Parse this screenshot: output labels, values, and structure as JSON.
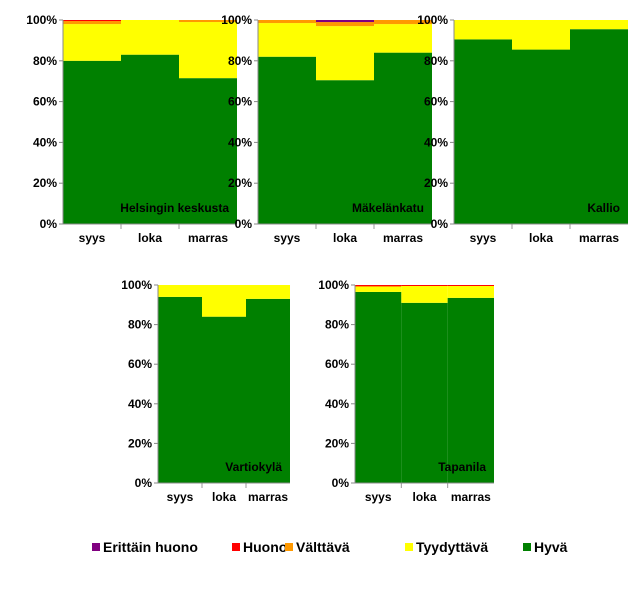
{
  "colors": {
    "Erittäin huono": "#800080",
    "Huono": "#ff0000",
    "Välttävä": "#ff9900",
    "Tyydyttävä": "#ffff00",
    "Hyvä": "#008000"
  },
  "chart_data": [
    {
      "type": "bar",
      "stacked": "percent",
      "title": "Helsingin keskusta",
      "categories": [
        "syys",
        "loka",
        "marras"
      ],
      "ylim": [
        0,
        100
      ],
      "yticks": [
        "0%",
        "20%",
        "40%",
        "60%",
        "80%",
        "100%"
      ],
      "series": [
        {
          "name": "Hyvä",
          "values": [
            80,
            83,
            71.5
          ]
        },
        {
          "name": "Tyydyttävä",
          "values": [
            18,
            17,
            27.5
          ]
        },
        {
          "name": "Välttävä",
          "values": [
            1.5,
            0,
            1
          ]
        },
        {
          "name": "Huono",
          "values": [
            0.5,
            0,
            0
          ]
        },
        {
          "name": "Erittäin huono",
          "values": [
            0,
            0,
            0
          ]
        }
      ]
    },
    {
      "type": "bar",
      "stacked": "percent",
      "title": "Mäkelänkatu",
      "categories": [
        "syys",
        "loka",
        "marras"
      ],
      "ylim": [
        0,
        100
      ],
      "yticks": [
        "0%",
        "20%",
        "40%",
        "60%",
        "80%",
        "100%"
      ],
      "series": [
        {
          "name": "Hyvä",
          "values": [
            82,
            70.5,
            84
          ]
        },
        {
          "name": "Tyydyttävä",
          "values": [
            16.5,
            26.5,
            14
          ]
        },
        {
          "name": "Välttävä",
          "values": [
            1.5,
            2,
            2
          ]
        },
        {
          "name": "Huono",
          "values": [
            0,
            0,
            0
          ]
        },
        {
          "name": "Erittäin huono",
          "values": [
            0,
            1,
            0
          ]
        }
      ]
    },
    {
      "type": "bar",
      "stacked": "percent",
      "title": "Kallio",
      "categories": [
        "syys",
        "loka",
        "marras"
      ],
      "ylim": [
        0,
        100
      ],
      "yticks": [
        "0%",
        "20%",
        "40%",
        "60%",
        "80%",
        "100%"
      ],
      "series": [
        {
          "name": "Hyvä",
          "values": [
            90.5,
            85.5,
            95.5
          ]
        },
        {
          "name": "Tyydyttävä",
          "values": [
            9.5,
            14.5,
            4.5
          ]
        },
        {
          "name": "Välttävä",
          "values": [
            0,
            0,
            0
          ]
        },
        {
          "name": "Huono",
          "values": [
            0,
            0,
            0
          ]
        },
        {
          "name": "Erittäin huono",
          "values": [
            0,
            0,
            0
          ]
        }
      ]
    },
    {
      "type": "bar",
      "stacked": "percent",
      "title": "Vartiokylä",
      "categories": [
        "syys",
        "loka",
        "marras"
      ],
      "ylim": [
        0,
        100
      ],
      "yticks": [
        "0%",
        "20%",
        "40%",
        "60%",
        "80%",
        "100%"
      ],
      "series": [
        {
          "name": "Hyvä",
          "values": [
            94,
            84,
            93
          ]
        },
        {
          "name": "Tyydyttävä",
          "values": [
            6,
            16,
            7
          ]
        },
        {
          "name": "Välttävä",
          "values": [
            0,
            0,
            0
          ]
        },
        {
          "name": "Huono",
          "values": [
            0,
            0,
            0
          ]
        },
        {
          "name": "Erittäin huono",
          "values": [
            0,
            0,
            0
          ]
        }
      ]
    },
    {
      "type": "bar",
      "stacked": "percent",
      "title": "Tapanila",
      "categories": [
        "syys",
        "loka",
        "marras"
      ],
      "ylim": [
        0,
        100
      ],
      "yticks": [
        "0%",
        "20%",
        "40%",
        "60%",
        "80%",
        "100%"
      ],
      "series": [
        {
          "name": "Hyvä",
          "values": [
            96.5,
            91,
            93.5
          ]
        },
        {
          "name": "Tyydyttävä",
          "values": [
            2.5,
            8.5,
            6
          ]
        },
        {
          "name": "Välttävä",
          "values": [
            0.5,
            0,
            0
          ]
        },
        {
          "name": "Huono",
          "values": [
            0.5,
            0.5,
            0.5
          ]
        },
        {
          "name": "Erittäin huono",
          "values": [
            0,
            0,
            0
          ]
        }
      ]
    }
  ],
  "legend": [
    "Erittäin huono",
    "Huono",
    "Välttävä",
    "Tyydyttävä",
    "Hyvä"
  ]
}
